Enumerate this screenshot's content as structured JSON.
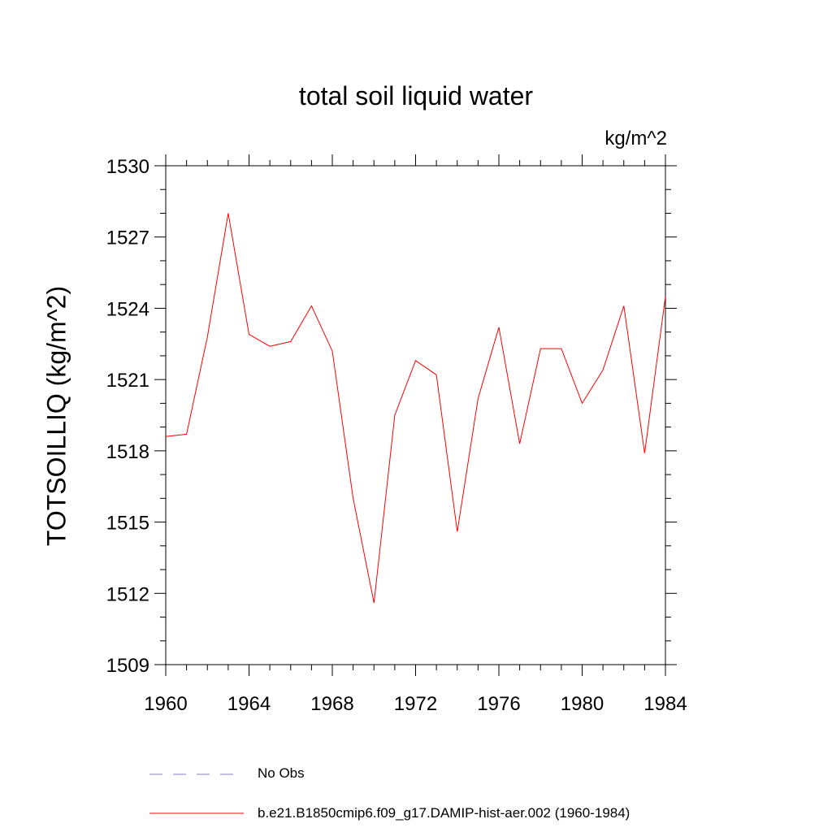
{
  "chart_data": {
    "type": "line",
    "title": "total soil liquid water",
    "units_label": "kg/m^2",
    "ylabel": "TOTSOILLIQ  (kg/m^2)",
    "xlabel": "",
    "xlim": [
      1960,
      1984
    ],
    "ylim": [
      1509,
      1530
    ],
    "x_ticks": [
      1960,
      1964,
      1968,
      1972,
      1976,
      1980,
      1984
    ],
    "y_ticks": [
      1509,
      1512,
      1515,
      1518,
      1521,
      1524,
      1527,
      1530
    ],
    "grid": false,
    "legend_position": "bottom",
    "series": [
      {
        "name": "b.e21.B1850cmip6.f09_g17.DAMIP-hist-aer.002 (1960-1984)",
        "color": "#ff0000",
        "style": "solid",
        "x": [
          1960,
          1961,
          1962,
          1963,
          1964,
          1965,
          1966,
          1967,
          1968,
          1969,
          1970,
          1971,
          1972,
          1973,
          1974,
          1975,
          1976,
          1977,
          1978,
          1979,
          1980,
          1981,
          1982,
          1983,
          1984
        ],
        "values": [
          1518.6,
          1518.7,
          1522.8,
          1528.0,
          1522.9,
          1522.4,
          1522.6,
          1524.1,
          1522.2,
          1516.0,
          1511.6,
          1519.5,
          1521.8,
          1521.2,
          1514.6,
          1520.2,
          1523.2,
          1518.3,
          1522.3,
          1522.3,
          1520.0,
          1521.4,
          1524.1,
          1517.9,
          1524.5
        ]
      }
    ],
    "legend": [
      {
        "label": "No Obs",
        "color": "#7f7fbf",
        "style": "dashed"
      },
      {
        "label": "b.e21.B1850cmip6.f09_g17.DAMIP-hist-aer.002 (1960-1984)",
        "color": "#ff0000",
        "style": "solid"
      }
    ]
  }
}
